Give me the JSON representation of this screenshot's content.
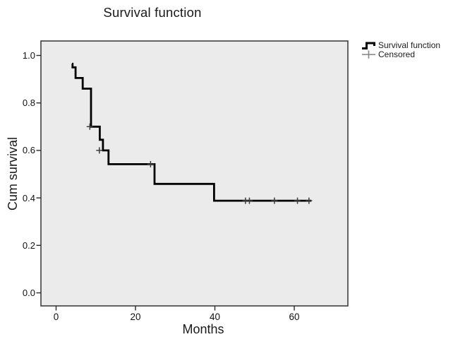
{
  "chart_data": {
    "type": "line",
    "subtype": "kaplan-meier-step",
    "title": "Survival function",
    "xlabel": "Months",
    "ylabel": "Cum survival",
    "x_ticks": [
      "0",
      "20",
      "40",
      "60"
    ],
    "y_ticks": [
      "0.0",
      "0.2",
      "0.4",
      "0.6",
      "0.8",
      "1.0"
    ],
    "xlim": [
      -3.82,
      73.5
    ],
    "ylim": [
      -0.055,
      1.061
    ],
    "grid": false,
    "legend_position": "outside-top-right",
    "series": [
      {
        "name": "Survival function",
        "style": "step-after",
        "points": [
          [
            4.0,
            0.965
          ],
          [
            4.15,
            0.95
          ],
          [
            4.9,
            0.905
          ],
          [
            6.7,
            0.86
          ],
          [
            8.8,
            0.7
          ],
          [
            11.0,
            0.645
          ],
          [
            11.8,
            0.6
          ],
          [
            13.2,
            0.542
          ],
          [
            24.8,
            0.459
          ],
          [
            39.8,
            0.388
          ]
        ],
        "end_x": 64.3
      }
    ],
    "censored_points": [
      [
        8.5,
        0.7
      ],
      [
        10.9,
        0.6
      ],
      [
        23.8,
        0.542
      ],
      [
        47.7,
        0.388
      ],
      [
        48.7,
        0.388
      ],
      [
        55.0,
        0.388
      ],
      [
        60.8,
        0.388
      ],
      [
        63.7,
        0.388
      ]
    ]
  },
  "legend": {
    "items": [
      {
        "label": "Survival function",
        "symbol": "step-line-icon"
      },
      {
        "label": "Censored",
        "symbol": "plus-icon"
      }
    ]
  },
  "colors": {
    "page_background": "#ffffff",
    "plot_background": "#ebebeb",
    "plot_border": "#3f3f3f",
    "curve": "#000000",
    "censor_mark": "#3c3c3c",
    "tick": "#2a2a2a",
    "legend_censor": "#8c8c8c",
    "text": "#1a1a1a"
  }
}
